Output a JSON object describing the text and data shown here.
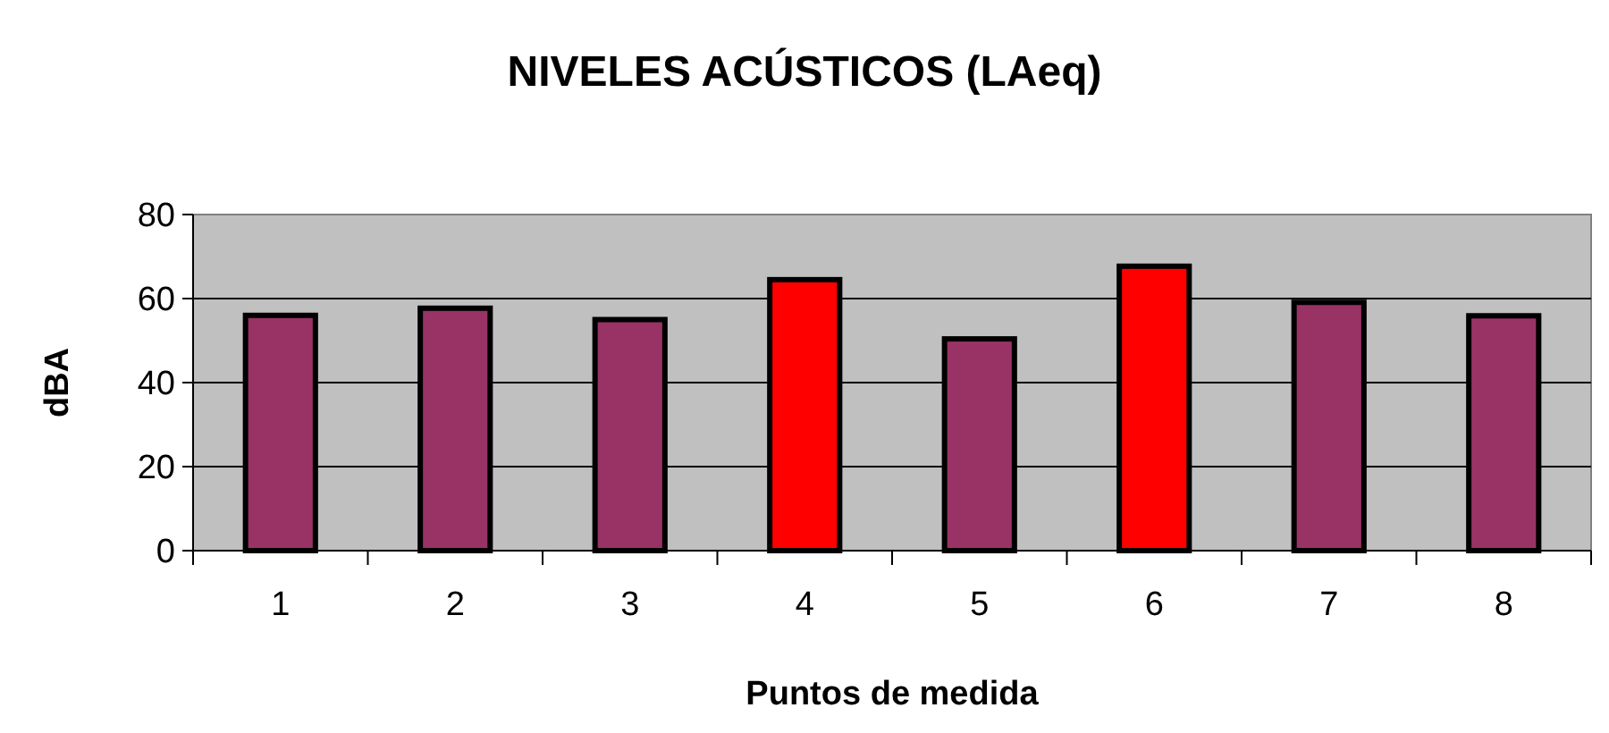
{
  "chart_data": {
    "type": "bar",
    "title": "NIVELES ACÚSTICOS (LAeq)",
    "xlabel": "Puntos de medida",
    "ylabel": "dBA",
    "categories": [
      "1",
      "2",
      "3",
      "4",
      "5",
      "6",
      "7",
      "8"
    ],
    "values": [
      56,
      57.7,
      55,
      64.5,
      50.4,
      67.7,
      59.1,
      55.9
    ],
    "colors": [
      "#993366",
      "#993366",
      "#993366",
      "#ff0000",
      "#993366",
      "#ff0000",
      "#993366",
      "#993366"
    ],
    "ylim": [
      0,
      80
    ],
    "yticks": [
      0,
      20,
      40,
      60,
      80
    ],
    "grid": "y"
  }
}
